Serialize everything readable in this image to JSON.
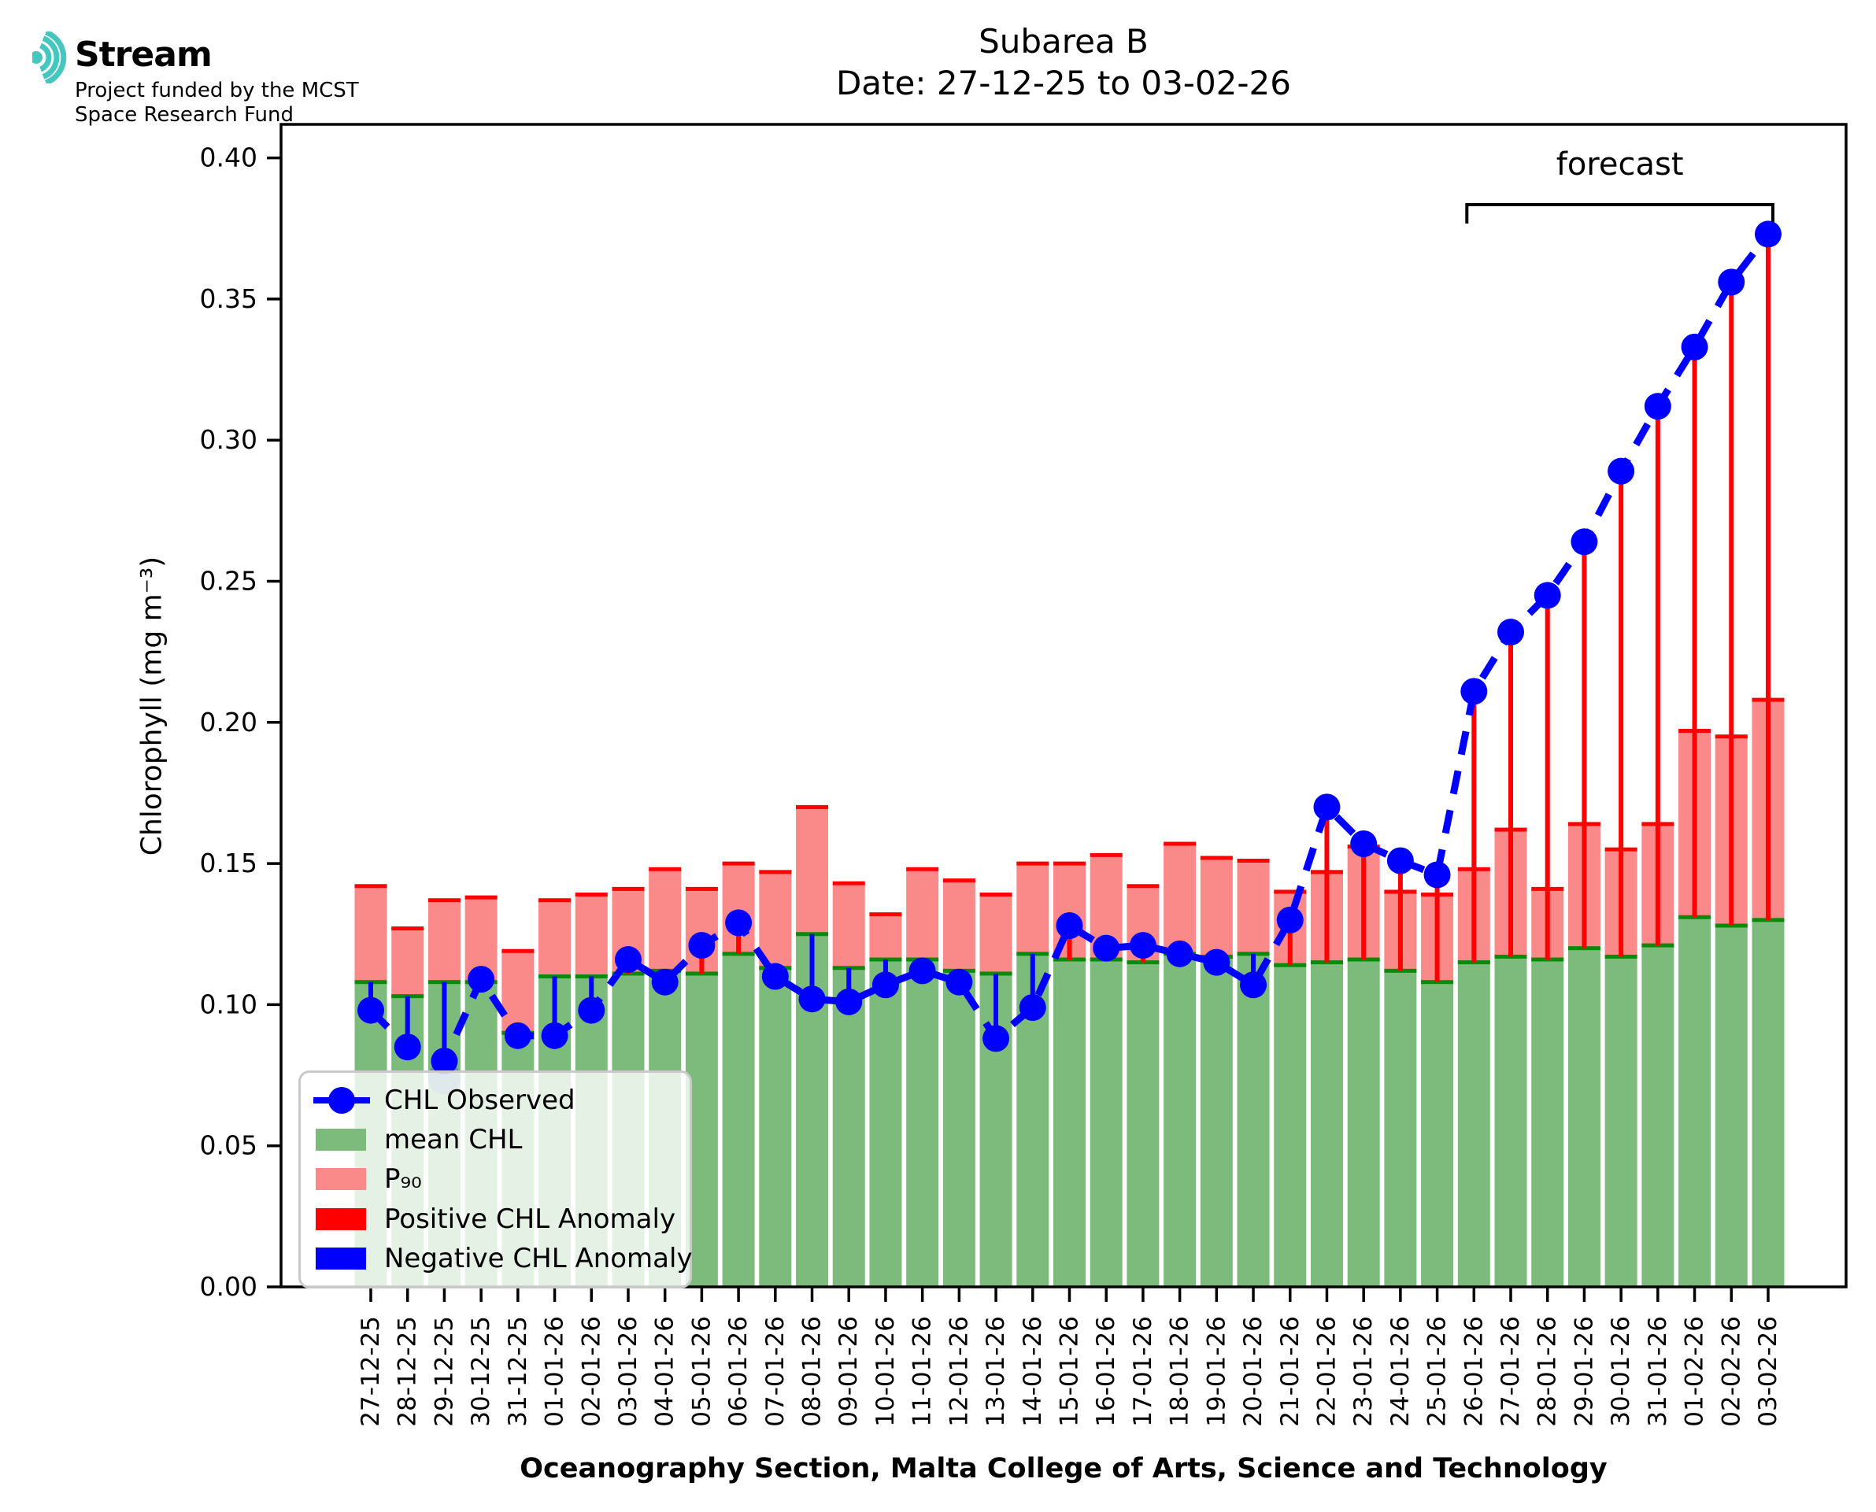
{
  "logo": {
    "brand": "Stream",
    "subtitle_line1": "Project funded by the MCST",
    "subtitle_line2": "Space Research Fund",
    "icon_color": "#45C7BF"
  },
  "title": {
    "line1": "Subarea B",
    "line2": "Date: 27-12-25 to 03-02-26"
  },
  "forecast_label": "forecast",
  "axes": {
    "ylabel": "Chlorophyll (mg m⁻³)",
    "xlabel": "Oceanography Section, Malta College of Arts, Science and Technology",
    "yticks": [
      "0.00",
      "0.05",
      "0.10",
      "0.15",
      "0.20",
      "0.25",
      "0.30",
      "0.35",
      "0.40"
    ],
    "ylim": [
      0,
      0.412
    ],
    "grid": false
  },
  "legend": {
    "items": [
      {
        "type": "line-marker",
        "label": "CHL Observed",
        "color": "#0000FF"
      },
      {
        "type": "patch",
        "label": "mean CHL",
        "color": "#7DBB7D"
      },
      {
        "type": "patch",
        "label": "P₉₀",
        "color": "#FA8A8A"
      },
      {
        "type": "patch",
        "label": "Positive CHL Anomaly",
        "color": "#FF0000"
      },
      {
        "type": "patch",
        "label": "Negative CHL Anomaly",
        "color": "#0000FF"
      }
    ]
  },
  "colors": {
    "mean_fill": "#7DBB7D",
    "mean_cap": "#0A8A0A",
    "p90_fill": "#FA8A8A",
    "p90_cap": "#FF0000",
    "observed": "#0000FF",
    "positive_anomaly": "#FF0000",
    "negative_anomaly": "#0000FF",
    "halo": "rgba(0,0,255,0.22)"
  },
  "chart_data": {
    "type": "bar+line",
    "title": "Subarea B — Date: 27-12-25 to 03-02-26",
    "xlabel": "Oceanography Section, Malta College of Arts, Science and Technology",
    "ylabel": "Chlorophyll (mg m⁻³)",
    "ylim": [
      0,
      0.412
    ],
    "categories": [
      "27-12-25",
      "28-12-25",
      "29-12-25",
      "30-12-25",
      "31-12-25",
      "01-01-26",
      "02-01-26",
      "03-01-26",
      "04-01-26",
      "05-01-26",
      "06-01-26",
      "07-01-26",
      "08-01-26",
      "09-01-26",
      "10-01-26",
      "11-01-26",
      "12-01-26",
      "13-01-26",
      "14-01-26",
      "15-01-26",
      "16-01-26",
      "17-01-26",
      "18-01-26",
      "19-01-26",
      "20-01-26",
      "21-01-26",
      "22-01-26",
      "23-01-26",
      "24-01-26",
      "25-01-26",
      "26-01-26",
      "27-01-26",
      "28-01-26",
      "29-01-26",
      "30-01-26",
      "31-01-26",
      "01-02-26",
      "02-02-26",
      "03-02-26"
    ],
    "series": [
      {
        "name": "CHL Observed",
        "style": "dashed-line-dots",
        "values": [
          0.098,
          0.085,
          0.08,
          0.109,
          0.089,
          0.089,
          0.098,
          0.116,
          0.108,
          0.121,
          0.129,
          0.11,
          0.102,
          0.101,
          0.107,
          0.112,
          0.108,
          0.088,
          0.099,
          0.128,
          0.12,
          0.121,
          0.118,
          0.115,
          0.107,
          0.13,
          0.17,
          0.157,
          0.151,
          0.146,
          0.211,
          0.232,
          0.245,
          0.264,
          0.289,
          0.312,
          0.333,
          0.356,
          0.373
        ]
      },
      {
        "name": "mean CHL",
        "style": "bar",
        "values": [
          0.108,
          0.103,
          0.108,
          0.108,
          0.09,
          0.11,
          0.11,
          0.111,
          0.112,
          0.111,
          0.118,
          0.113,
          0.125,
          0.113,
          0.116,
          0.116,
          0.112,
          0.111,
          0.118,
          0.116,
          0.116,
          0.115,
          0.118,
          0.117,
          0.118,
          0.114,
          0.115,
          0.116,
          0.112,
          0.108,
          0.115,
          0.117,
          0.116,
          0.12,
          0.117,
          0.121,
          0.131,
          0.128,
          0.13
        ]
      },
      {
        "name": "P90",
        "style": "bar",
        "values": [
          0.142,
          0.127,
          0.137,
          0.138,
          0.119,
          0.137,
          0.139,
          0.141,
          0.148,
          0.141,
          0.15,
          0.147,
          0.17,
          0.143,
          0.132,
          0.148,
          0.144,
          0.139,
          0.15,
          0.15,
          0.153,
          0.142,
          0.157,
          0.152,
          0.151,
          0.14,
          0.147,
          0.156,
          0.14,
          0.139,
          0.148,
          0.162,
          0.141,
          0.164,
          0.155,
          0.164,
          0.197,
          0.195,
          0.208
        ]
      }
    ],
    "anomaly_rule": "red line where observed > mean, blue line where observed < mean",
    "forecast_start_category": "26-01-26",
    "forecast_start_index": 30,
    "negative_anomaly_halo": {
      "category": "29-12-25",
      "value": 0.074
    },
    "legend_position": "lower left"
  }
}
